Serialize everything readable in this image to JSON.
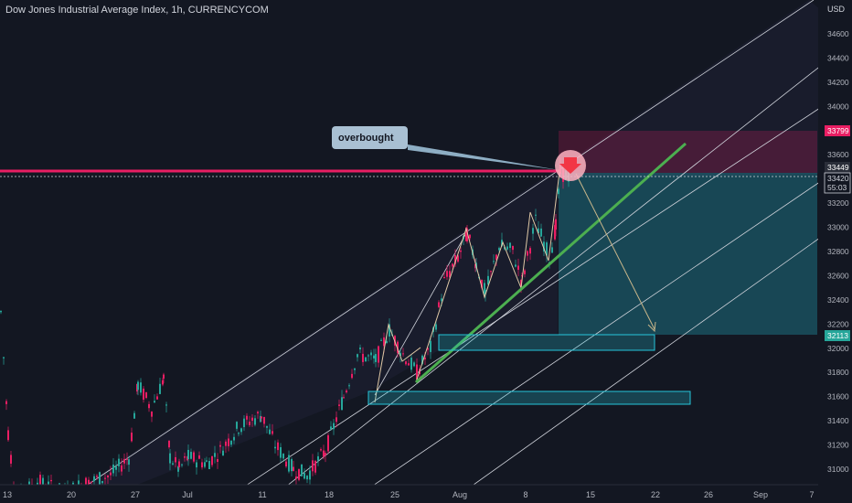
{
  "header": {
    "title": "Dow Jones Industrial Average Index, 1h, CURRENCYCOM"
  },
  "price_axis": {
    "currency": "USD",
    "ticks": [
      "34600",
      "34400",
      "34200",
      "34000",
      "33800",
      "33600",
      "33400",
      "33200",
      "33000",
      "32800",
      "32600",
      "32400",
      "32200",
      "32000",
      "31800",
      "31600",
      "31400",
      "31200",
      "31000"
    ],
    "tags": [
      {
        "label": "33799",
        "color": "#e91e63"
      },
      {
        "label": "33449",
        "color": "#2a2e39"
      },
      {
        "label": "33420",
        "color": "#131722"
      },
      {
        "label": "55:03",
        "color": "#131722"
      },
      {
        "label": "32113",
        "color": "#26a69a"
      }
    ]
  },
  "time_axis": {
    "ticks": [
      "13",
      "20",
      "27",
      "Jul",
      "11",
      "18",
      "25",
      "Aug",
      "8",
      "15",
      "22",
      "26",
      "Sep",
      "7"
    ]
  },
  "annotation": {
    "label": "overbought",
    "arrow_icon": "down-arrow-icon"
  },
  "colors": {
    "background": "#131722",
    "resistance_line": "#e91e63",
    "trend_line": "#4caf50",
    "candle_up": "#26a69a",
    "candle_down": "#e91e63",
    "target_zone": "#26c6da",
    "stop_zone": "#e91e63"
  },
  "chart_data": {
    "type": "candlestick",
    "title": "Dow Jones Industrial Average Index, 1h, CURRENCYCOM",
    "ylim": [
      30900,
      34800
    ],
    "x_ticks": [
      "13",
      "20",
      "27",
      "Jul",
      "11",
      "18",
      "25",
      "Aug",
      "8",
      "15",
      "22",
      "26",
      "Sep",
      "7"
    ],
    "close_path": [
      {
        "x": 0,
        "y": 32300
      },
      {
        "x": 8,
        "y": 31300
      },
      {
        "x": 16,
        "y": 30750
      },
      {
        "x": 40,
        "y": 30900
      },
      {
        "x": 70,
        "y": 30800
      },
      {
        "x": 90,
        "y": 30880
      },
      {
        "x": 120,
        "y": 30950
      },
      {
        "x": 140,
        "y": 31100
      },
      {
        "x": 150,
        "y": 31700
      },
      {
        "x": 165,
        "y": 31500
      },
      {
        "x": 178,
        "y": 31750
      },
      {
        "x": 185,
        "y": 31100
      },
      {
        "x": 195,
        "y": 31000
      },
      {
        "x": 205,
        "y": 31100
      },
      {
        "x": 225,
        "y": 31050
      },
      {
        "x": 240,
        "y": 31150
      },
      {
        "x": 260,
        "y": 31350
      },
      {
        "x": 285,
        "y": 31450
      },
      {
        "x": 300,
        "y": 31200
      },
      {
        "x": 320,
        "y": 31000
      },
      {
        "x": 335,
        "y": 30950
      },
      {
        "x": 355,
        "y": 31150
      },
      {
        "x": 375,
        "y": 31600
      },
      {
        "x": 390,
        "y": 31950
      },
      {
        "x": 410,
        "y": 31900
      },
      {
        "x": 425,
        "y": 32150
      },
      {
        "x": 440,
        "y": 31950
      },
      {
        "x": 455,
        "y": 31800
      },
      {
        "x": 470,
        "y": 32000
      },
      {
        "x": 485,
        "y": 32550
      },
      {
        "x": 500,
        "y": 32750
      },
      {
        "x": 510,
        "y": 32950
      },
      {
        "x": 520,
        "y": 32700
      },
      {
        "x": 530,
        "y": 32450
      },
      {
        "x": 545,
        "y": 32850
      },
      {
        "x": 560,
        "y": 32800
      },
      {
        "x": 570,
        "y": 32550
      },
      {
        "x": 585,
        "y": 33050
      },
      {
        "x": 600,
        "y": 32750
      },
      {
        "x": 607,
        "y": 33000
      },
      {
        "x": 612,
        "y": 33450
      },
      {
        "x": 622,
        "y": 33420
      }
    ],
    "horizontal_levels": [
      {
        "price": 33470,
        "label": "resistance"
      }
    ],
    "zones": [
      {
        "name": "stop",
        "top": 33799,
        "bottom": 33449
      },
      {
        "name": "target",
        "top": 33449,
        "bottom": 32113
      },
      {
        "name": "box-1",
        "top": 32100,
        "bottom": 31980
      },
      {
        "name": "box-2",
        "top": 31640,
        "bottom": 31540
      }
    ]
  }
}
